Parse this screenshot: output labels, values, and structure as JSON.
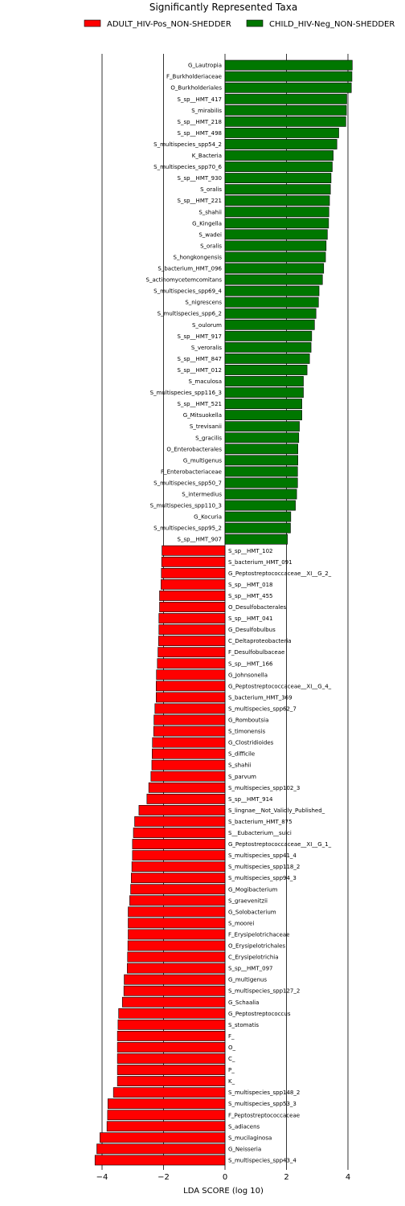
{
  "chart_data": {
    "type": "bar",
    "orientation": "horizontal",
    "title": "Significantly Represented Taxa",
    "xlabel": "LDA SCORE (log 10)",
    "xlim": [
      -4.3,
      4.3
    ],
    "xticks": [
      -4,
      -2,
      0,
      2,
      4
    ],
    "xtick_labels": [
      "−4",
      "−2",
      "0",
      "2",
      "4"
    ],
    "grid": "vertical",
    "legend_position": "top",
    "series": [
      {
        "name": "ADULT_HIV-Pos_NON-SHEDDER",
        "color": "#ff0000",
        "categories": [
          "S_sp__HMT_102",
          "S_bacterium_HMT_091",
          "G_Peptostreptococcaceae__XI__G_2_",
          "S_sp__HMT_018",
          "S_sp__HMT_455",
          "O_Desulfobacterales",
          "S_sp__HMT_041",
          "G_Desulfobulbus",
          "C_Deltaproteobacteria",
          "F_Desulfobulbaceae",
          "S_sp__HMT_166",
          "G_Johnsonella",
          "G_Peptostreptococcaceae__XI__G_4_",
          "S_bacterium_HMT_369",
          "S_multispecies_spp62_7",
          "G_Romboutsia",
          "S_timonensis",
          "G_Clostridioides",
          "S_difficile",
          "S_shahii",
          "S_parvum",
          "S_multispecies_spp102_3",
          "S_sp__HMT_914",
          "S_lingnae__Not_Validly_Published_",
          "S_bacterium_HMT_875",
          "S__Eubacterium__sulci",
          "G_Peptostreptococcaceae__XI__G_1_",
          "S_multispecies_spp41_4",
          "S_multispecies_spp118_2",
          "S_multispecies_spp94_3",
          "G_Mogibacterium",
          "S_graevenitzii",
          "G_Solobacterium",
          "S_moorei",
          "F_Erysipelotrichaceae",
          "O_Erysipelotrichales",
          "C_Erysipelotrichia",
          "S_sp__HMT_097",
          "G_multigenus",
          "S_multispecies_spp127_2",
          "G_Schaalia",
          "G_Peptostreptococcus",
          "S_stomatis",
          "F_",
          "O_",
          "C_",
          "P_",
          "K_",
          "S_multispecies_spp148_2",
          "S_multispecies_spp53_3",
          "F_Peptostreptococcaceae",
          "S_adiacens",
          "S_mucilaginosa",
          "G_Neisseria",
          "S_multispecies_spp43_4"
        ],
        "values": [
          -2.05,
          -2.06,
          -2.07,
          -2.08,
          -2.13,
          -2.13,
          -2.15,
          -2.15,
          -2.16,
          -2.18,
          -2.2,
          -2.23,
          -2.24,
          -2.24,
          -2.28,
          -2.31,
          -2.32,
          -2.36,
          -2.37,
          -2.38,
          -2.41,
          -2.48,
          -2.54,
          -2.8,
          -2.94,
          -2.98,
          -3.01,
          -3.01,
          -3.03,
          -3.05,
          -3.07,
          -3.1,
          -3.15,
          -3.15,
          -3.15,
          -3.16,
          -3.17,
          -3.18,
          -3.28,
          -3.29,
          -3.34,
          -3.46,
          -3.48,
          -3.5,
          -3.5,
          -3.5,
          -3.5,
          -3.5,
          -3.63,
          -3.81,
          -3.82,
          -3.84,
          -4.07,
          -4.17,
          -4.23
        ]
      },
      {
        "name": "CHILD_HIV-Neg_NON-SHEDDER",
        "color": "#007700",
        "categories": [
          "G_Lautropia",
          "F_Burkholderiaceae",
          "O_Burkholderiales",
          "S_sp__HMT_417",
          "S_mirabilis",
          "S_sp__HMT_218",
          "S_sp__HMT_498",
          "S_multispecies_spp54_2",
          "K_Bacteria",
          "S_multispecies_spp70_6",
          "S_sp__HMT_930",
          "S_oralis",
          "S_sp__HMT_221",
          "S_shahii",
          "G_Kingella",
          "S_wadei",
          "S_oralis",
          "S_hongkongensis",
          "S_bacterium_HMT_096",
          "S_actinomycetemcomitans",
          "S_multispecies_spp69_4",
          "S_nigrescens",
          "S_multispecies_spp6_2",
          "S_oulorum",
          "S_sp__HMT_917",
          "S_veroralis",
          "S_sp__HMT_847",
          "S_sp__HMT_012",
          "S_maculosa",
          "S_multispecies_spp116_3",
          "S_sp__HMT_521",
          "G_Mitsuokella",
          "S_trevisanii",
          "S_gracilis",
          "O_Enterobacterales",
          "G_multigenus",
          "F_Enterobacteriaceae",
          "S_multispecies_spp50_7",
          "S_intermedius",
          "S_multispecies_spp110_3",
          "G_Kocuria",
          "S_multispecies_spp95_2",
          "S_sp__HMT_907"
        ],
        "values": [
          4.14,
          4.13,
          4.11,
          3.96,
          3.95,
          3.93,
          3.7,
          3.64,
          3.52,
          3.49,
          3.45,
          3.43,
          3.4,
          3.38,
          3.37,
          3.33,
          3.29,
          3.27,
          3.21,
          3.17,
          3.06,
          3.04,
          2.96,
          2.91,
          2.82,
          2.8,
          2.75,
          2.67,
          2.55,
          2.55,
          2.5,
          2.5,
          2.42,
          2.4,
          2.37,
          2.37,
          2.36,
          2.36,
          2.33,
          2.29,
          2.14,
          2.13,
          2.03
        ]
      }
    ]
  }
}
